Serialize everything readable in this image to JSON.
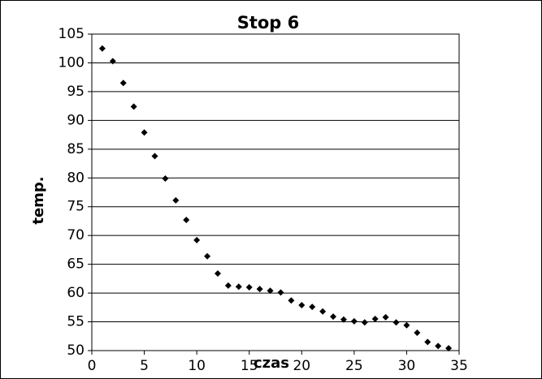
{
  "chart_data": {
    "type": "scatter",
    "title": "Stop 6",
    "x_label": "czas",
    "y_label": "temp.",
    "x": [
      1,
      2,
      3,
      4,
      5,
      6,
      7,
      8,
      9,
      10,
      11,
      12,
      13,
      14,
      15,
      16,
      17,
      18,
      19,
      20,
      21,
      22,
      23,
      24,
      25,
      26,
      27,
      28,
      29,
      30,
      31,
      32,
      33,
      34
    ],
    "series": [
      {
        "name": "temp.",
        "color": "#000000",
        "values": [
          102.5,
          100.3,
          96.5,
          92.4,
          87.9,
          83.8,
          79.9,
          76.1,
          72.7,
          69.2,
          66.4,
          63.4,
          61.3,
          61.1,
          61.0,
          60.7,
          60.4,
          60.1,
          58.7,
          57.9,
          57.6,
          56.8,
          55.9,
          55.4,
          55.1,
          54.9,
          55.5,
          55.8,
          54.9,
          54.4,
          53.1,
          51.5,
          50.8,
          50.4
        ]
      }
    ],
    "xlim": [
      0,
      35
    ],
    "xticks": [
      0,
      5,
      10,
      15,
      20,
      25,
      30,
      35
    ],
    "ylim": [
      50,
      105
    ],
    "yticks": [
      50,
      55,
      60,
      65,
      70,
      75,
      80,
      85,
      90,
      95,
      100,
      105
    ],
    "grid": true
  }
}
